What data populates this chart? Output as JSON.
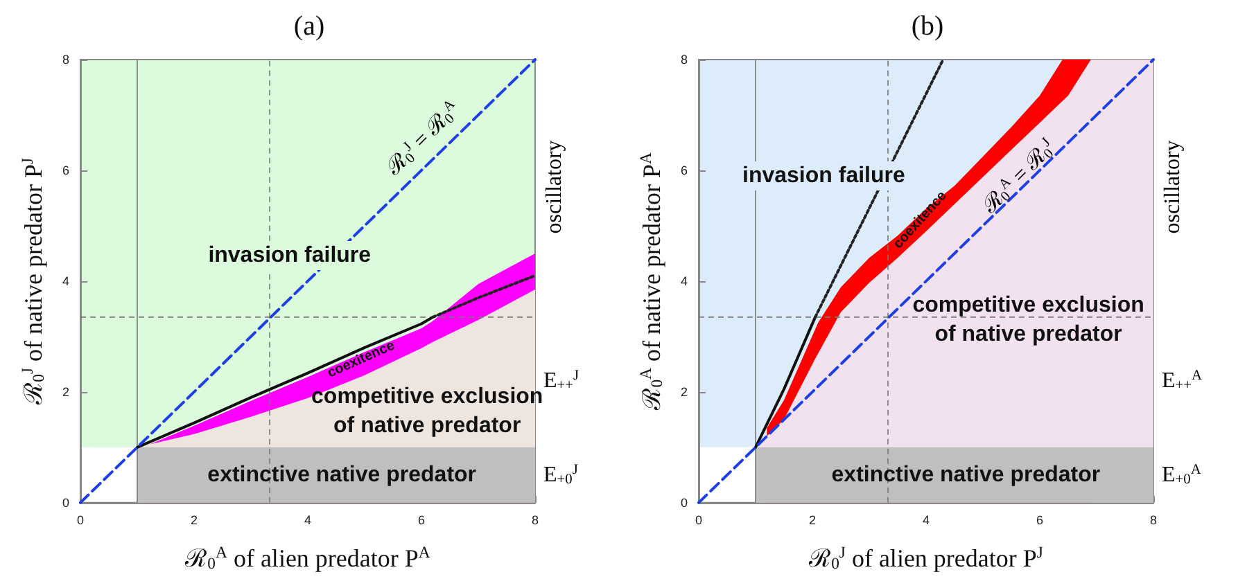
{
  "chart_data": [
    {
      "type": "area",
      "title": "(a)",
      "xlabel": "ℛ$_{0}$$^{A}$ of alien predator P$^{A}$",
      "ylabel": "ℛ$_{0}$$^{J}$ of native predator P$^{J}$",
      "xlim": [
        0,
        8
      ],
      "ylim": [
        0,
        8
      ],
      "xticks": [
        0,
        2,
        4,
        6,
        8
      ],
      "yticks": [
        0,
        2,
        4,
        6,
        8
      ],
      "grid": false,
      "marker": "none",
      "series": [
        {
          "color": "#ff00ff",
          "x": [
            1.1,
            2,
            3,
            4,
            5,
            6,
            6.2,
            7,
            8
          ],
          "values": [
            1,
            1.39,
            1.84,
            2.27,
            2.72,
            3.15,
            3.28,
            3.95,
            4.5
          ]
        },
        {
          "color": "#efe5df",
          "x": [
            1,
            2,
            3,
            4,
            5,
            6,
            6.2,
            7,
            8
          ],
          "values": [
            1,
            1.24,
            1.55,
            1.89,
            2.3,
            2.79,
            2.9,
            3.3,
            3.85
          ]
        },
        {
          "color": "#bfbfbf",
          "x": [
            1,
            8
          ],
          "values": [
            1,
            1
          ]
        },
        {
          "type": "line",
          "color": "#101010",
          "line_style": "solid",
          "x": [
            1,
            2,
            3,
            4,
            5,
            6,
            6.2
          ],
          "values": [
            1,
            1.44,
            1.9,
            2.34,
            2.8,
            3.23,
            3.35
          ]
        },
        {
          "type": "line",
          "color": "#222222",
          "line_style": "dotted",
          "x": [
            6.2,
            7,
            8
          ],
          "values": [
            3.35,
            3.7,
            4.1
          ]
        },
        {
          "type": "line",
          "color": "#1f3fe6",
          "line_style": "dashed",
          "x": [
            0,
            8
          ],
          "values": [
            0,
            8
          ]
        }
      ],
      "bands": [
        {
          "axis": "y",
          "from": 1,
          "to": 8,
          "color": "#dcfadc"
        }
      ],
      "ref_lines": [
        {
          "axis": "x",
          "value": 1,
          "color": "#777777",
          "line_style": "solid"
        },
        {
          "axis": "x",
          "value": 3.33,
          "color": "#777777",
          "line_style": "dashed"
        },
        {
          "axis": "y",
          "value": 3.35,
          "color": "#777777",
          "line_style": "dashed"
        }
      ],
      "annotations": [
        "invasion failure",
        "coexitence",
        "competitive exclusion\nof native predator",
        "extinctive native predator",
        "ℛ$_{0}$$^{J}$ = ℛ$_{0}$$^{A}$",
        "oscillatory",
        "E$_{++}$$^{J}$",
        "E$_{+0}$$^{J}$"
      ]
    },
    {
      "type": "area",
      "title": "(b)",
      "xlabel": "ℛ$_{0}$$^{J}$ of alien predator P$^{J}$",
      "ylabel": "ℛ$_{0}$$^{A}$ of native predator P$^{A}$",
      "xlim": [
        0,
        8
      ],
      "ylim": [
        0,
        8
      ],
      "xticks": [
        0,
        2,
        4,
        6,
        8
      ],
      "yticks": [
        0,
        2,
        4,
        6,
        8
      ],
      "grid": false,
      "marker": "none",
      "series": [
        {
          "color": "#ff0000",
          "x": [
            1.2,
            1.5,
            2.1,
            2.5,
            3,
            3.5,
            4,
            4.5,
            5,
            5.5,
            6,
            6.4,
            6.9
          ],
          "values": [
            1.35,
            1.85,
            3.25,
            3.89,
            4.42,
            4.82,
            5.31,
            5.72,
            6.25,
            6.78,
            7.35,
            8,
            8
          ]
        },
        {
          "color": "#f2e2f0",
          "x": [
            1,
            1.5,
            2.05,
            2.5,
            3,
            3.5,
            4,
            4.5,
            5,
            5.5,
            6,
            6.5,
            6.9,
            8
          ],
          "values": [
            1,
            1.5,
            2.6,
            3.44,
            3.97,
            4.42,
            4.9,
            5.39,
            5.88,
            6.37,
            6.86,
            7.35,
            8,
            8
          ]
        },
        {
          "color": "#bfbfbf",
          "x": [
            1,
            8
          ],
          "values": [
            1,
            1
          ]
        },
        {
          "type": "line",
          "color": "#101010",
          "line_style": "solid",
          "x": [
            1,
            1.5,
            2.05
          ],
          "values": [
            1,
            2.05,
            3.35
          ]
        },
        {
          "type": "line",
          "color": "#222222",
          "line_style": "dotted",
          "x": [
            2.05,
            4.3
          ],
          "values": [
            3.35,
            8
          ]
        },
        {
          "type": "line",
          "color": "#1f3fe6",
          "line_style": "dashed",
          "x": [
            0,
            8
          ],
          "values": [
            0,
            8
          ]
        }
      ],
      "bands": [
        {
          "axis": "y",
          "from": 1,
          "to": 8,
          "color": "#dcecfb"
        }
      ],
      "ref_lines": [
        {
          "axis": "x",
          "value": 1,
          "color": "#777777",
          "line_style": "solid"
        },
        {
          "axis": "x",
          "value": 3.33,
          "color": "#777777",
          "line_style": "dashed"
        },
        {
          "axis": "y",
          "value": 3.35,
          "color": "#777777",
          "line_style": "dashed"
        }
      ],
      "annotations": [
        "invasion failure",
        "coexitence",
        "competitive exclusion\nof native predator",
        "extinctive native predator",
        "ℛ$_{0}$$^{A}$ = ℛ$_{0}$$^{J}$",
        "oscillatory",
        "E$_{++}$$^{A}$",
        "E$_{+0}$$^{A}$"
      ]
    }
  ]
}
